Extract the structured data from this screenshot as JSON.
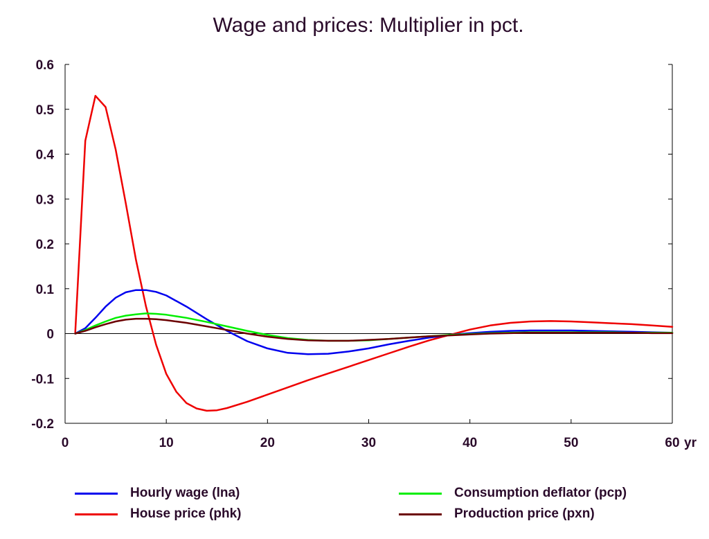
{
  "chart_data": {
    "type": "line",
    "title": "Wage and prices: Multiplier in pct.",
    "xlabel": "",
    "ylabel": "",
    "x_unit_label": "yr",
    "xlim": [
      0,
      60
    ],
    "ylim": [
      -0.2,
      0.6
    ],
    "x_ticks": [
      "0",
      "10",
      "20",
      "30",
      "40",
      "50",
      "60"
    ],
    "y_ticks": [
      "0.6",
      "0.5",
      "0.4",
      "0.3",
      "0.2",
      "0.1",
      "0",
      "-0.1",
      "-0.2"
    ],
    "grid": false,
    "legend_position": "bottom",
    "series": [
      {
        "name": "Hourly wage (lna)",
        "color": "#0000ee",
        "x": [
          1,
          2,
          3,
          4,
          5,
          6,
          7,
          8,
          9,
          10,
          12,
          14,
          16,
          18,
          20,
          22,
          24,
          26,
          28,
          30,
          32,
          34,
          36,
          38,
          40,
          42,
          44,
          46,
          48,
          50,
          52,
          54,
          56,
          58,
          60
        ],
        "values": [
          0,
          0.012,
          0.035,
          0.06,
          0.08,
          0.092,
          0.097,
          0.097,
          0.093,
          0.085,
          0.06,
          0.032,
          0.006,
          -0.017,
          -0.033,
          -0.043,
          -0.046,
          -0.045,
          -0.04,
          -0.033,
          -0.024,
          -0.016,
          -0.009,
          -0.003,
          0.001,
          0.004,
          0.006,
          0.007,
          0.007,
          0.007,
          0.006,
          0.005,
          0.004,
          0.003,
          0.002
        ]
      },
      {
        "name": "House price (phk)",
        "color": "#ee0000",
        "x": [
          1,
          2,
          3,
          4,
          5,
          6,
          7,
          8,
          9,
          10,
          11,
          12,
          13,
          14,
          15,
          16,
          18,
          20,
          22,
          24,
          26,
          28,
          30,
          32,
          34,
          36,
          38,
          40,
          42,
          44,
          46,
          48,
          50,
          52,
          54,
          56,
          58,
          60
        ],
        "values": [
          0,
          0.43,
          0.53,
          0.505,
          0.41,
          0.29,
          0.165,
          0.06,
          -0.025,
          -0.09,
          -0.13,
          -0.155,
          -0.167,
          -0.172,
          -0.171,
          -0.166,
          -0.152,
          -0.136,
          -0.12,
          -0.104,
          -0.089,
          -0.074,
          -0.059,
          -0.044,
          -0.029,
          -0.015,
          -0.003,
          0.009,
          0.018,
          0.024,
          0.027,
          0.028,
          0.027,
          0.025,
          0.023,
          0.021,
          0.018,
          0.015
        ]
      },
      {
        "name": "Consumption deflator (pcp)",
        "color": "#00ee00",
        "x": [
          1,
          2,
          3,
          4,
          5,
          6,
          7,
          8,
          9,
          10,
          12,
          14,
          16,
          18,
          20,
          22,
          24,
          26,
          28,
          30,
          32,
          34,
          36,
          38,
          40,
          42,
          44,
          46,
          48,
          50,
          52,
          54,
          56,
          58,
          60
        ],
        "values": [
          0,
          0.008,
          0.018,
          0.027,
          0.035,
          0.04,
          0.043,
          0.045,
          0.044,
          0.042,
          0.035,
          0.026,
          0.016,
          0.006,
          -0.003,
          -0.01,
          -0.014,
          -0.016,
          -0.016,
          -0.015,
          -0.012,
          -0.009,
          -0.006,
          -0.003,
          -0.001,
          0.001,
          0.002,
          0.003,
          0.003,
          0.003,
          0.003,
          0.003,
          0.002,
          0.002,
          0.002
        ]
      },
      {
        "name": "Production price (pxn)",
        "color": "#6b0000",
        "x": [
          1,
          2,
          3,
          4,
          5,
          6,
          7,
          8,
          9,
          10,
          12,
          14,
          16,
          18,
          20,
          22,
          24,
          26,
          28,
          30,
          32,
          34,
          36,
          38,
          40,
          42,
          44,
          46,
          48,
          50,
          52,
          54,
          56,
          58,
          60
        ],
        "values": [
          0,
          0.006,
          0.014,
          0.021,
          0.027,
          0.031,
          0.033,
          0.033,
          0.032,
          0.03,
          0.024,
          0.016,
          0.008,
          0.0,
          -0.007,
          -0.012,
          -0.015,
          -0.016,
          -0.016,
          -0.014,
          -0.012,
          -0.009,
          -0.006,
          -0.004,
          -0.002,
          0.0,
          0.001,
          0.002,
          0.002,
          0.002,
          0.002,
          0.002,
          0.002,
          0.001,
          0.001
        ]
      }
    ]
  }
}
